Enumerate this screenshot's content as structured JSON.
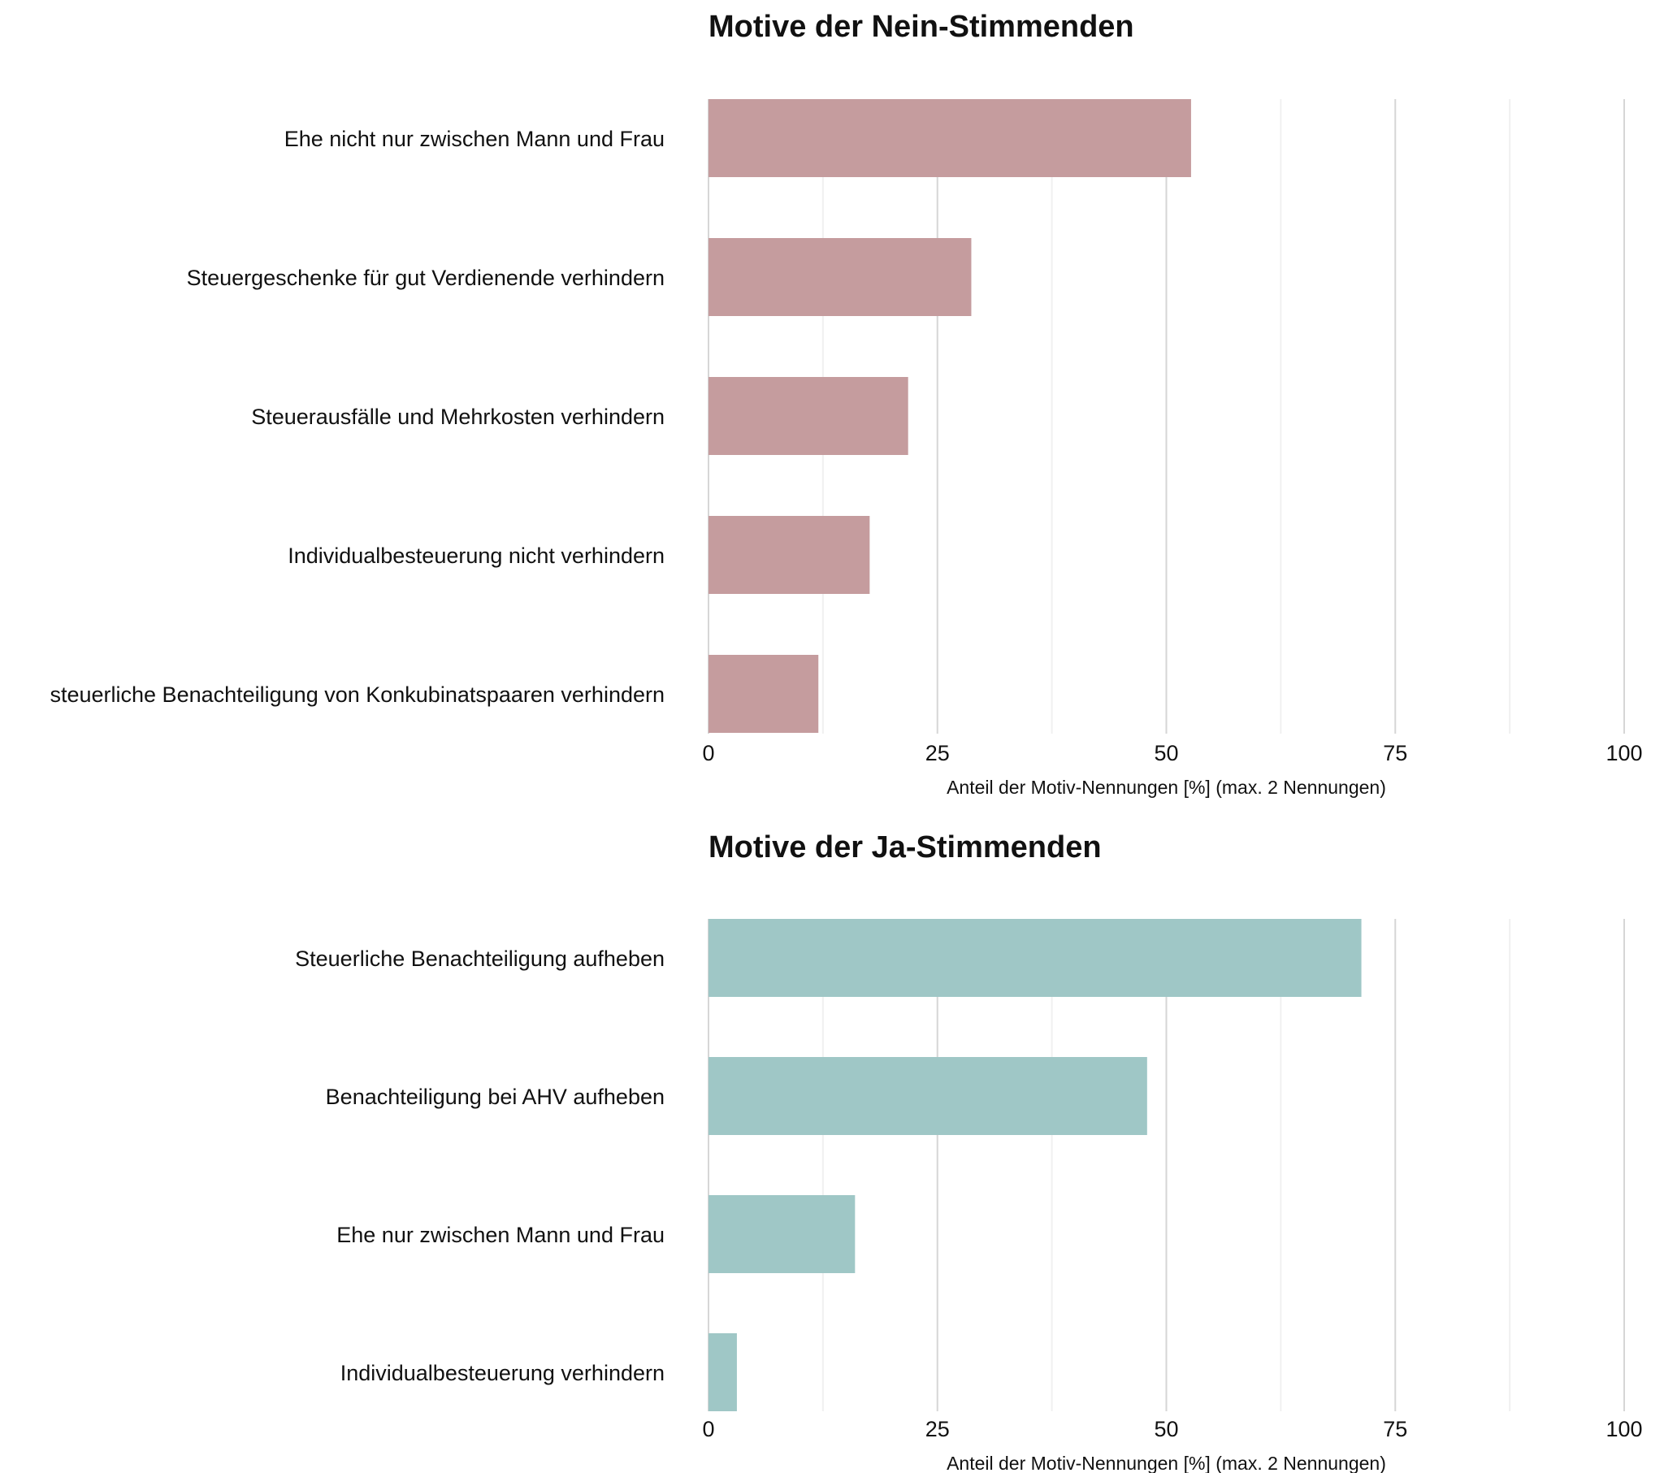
{
  "chart_data": [
    {
      "type": "bar",
      "orientation": "horizontal",
      "title": "Motive der Nein-Stimmenden",
      "categories": [
        "Ehe nicht nur zwischen Mann und Frau",
        "Steuergeschenke für gut Verdienende verhindern",
        "Steuerausfälle und Mehrkosten verhindern",
        "Individualbesteuerung nicht verhindern",
        "steuerliche Benachteiligung von Konkubinatspaaren verhindern"
      ],
      "values": [
        52.7,
        28.7,
        21.8,
        17.6,
        12.0
      ],
      "xlabel": "Anteil der Motiv-Nennungen [%] (max. 2 Nennungen)",
      "xlim": [
        0,
        100
      ],
      "xticks": [
        "0",
        "25",
        "50",
        "75",
        "100"
      ],
      "grid": true,
      "color": "#c59c9e"
    },
    {
      "type": "bar",
      "orientation": "horizontal",
      "title": "Motive der Ja-Stimmenden",
      "categories": [
        "Steuerliche Benachteiligung aufheben",
        "Benachteiligung bei AHV aufheben",
        "Ehe nur zwischen Mann und Frau",
        "Individualbesteuerung verhindern"
      ],
      "values": [
        71.3,
        47.9,
        16.0,
        3.1
      ],
      "xlabel": "Anteil der Motiv-Nennungen [%] (max. 2 Nennungen)",
      "xlim": [
        0,
        100
      ],
      "xticks": [
        "0",
        "25",
        "50",
        "75",
        "100"
      ],
      "grid": true,
      "color": "#9fc7c6"
    }
  ]
}
